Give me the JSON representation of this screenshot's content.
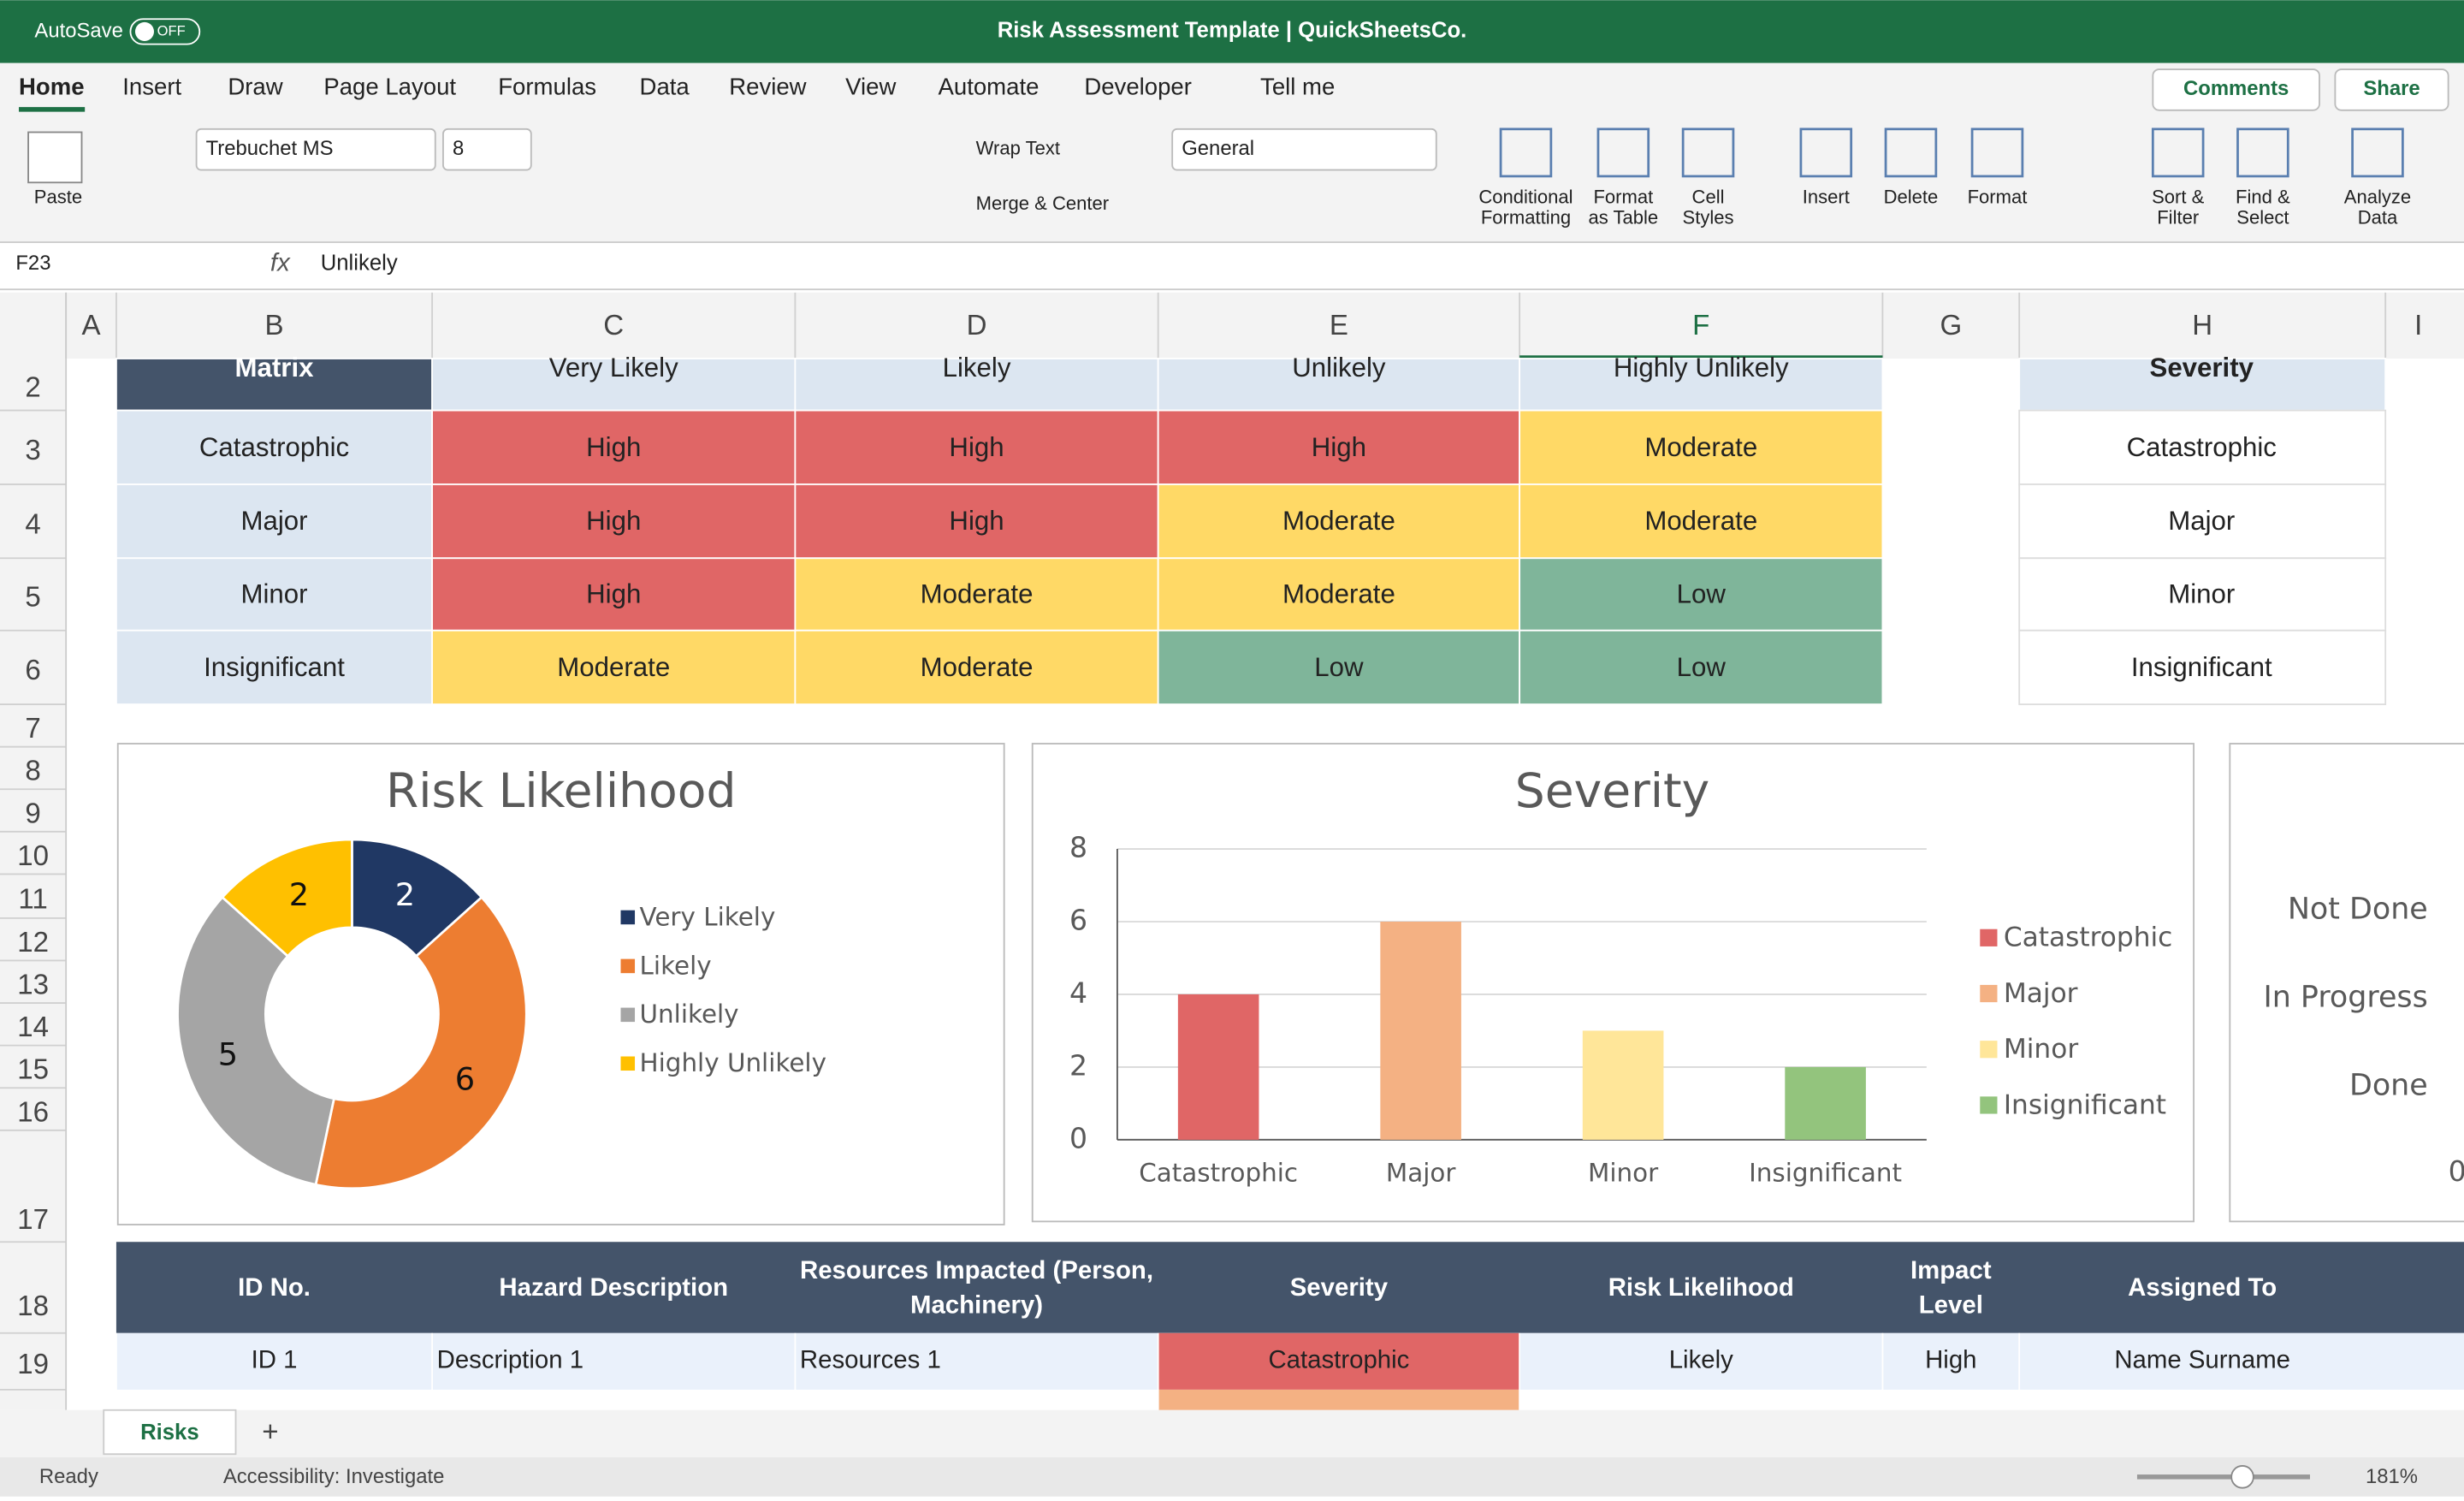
{
  "title_bar": {
    "autosave": "AutoSave",
    "toggle": "OFF",
    "title": "Risk Assessment Template | QuickSheetsCo."
  },
  "tabs": [
    "Home",
    "Insert",
    "Draw",
    "Page Layout",
    "Formulas",
    "Data",
    "Review",
    "View",
    "Automate",
    "Developer",
    "Tell me"
  ],
  "comments": "Comments",
  "share": "Share",
  "ribbon": {
    "paste": "Paste",
    "font": "Trebuchet MS",
    "size": "8",
    "wrap": "Wrap Text",
    "merge": "Merge & Center",
    "number_format": "General",
    "buttons": [
      [
        "Conditional",
        "Formatting"
      ],
      [
        "Format",
        "as Table"
      ],
      [
        "Cell",
        "Styles"
      ],
      [
        "Insert"
      ],
      [
        "Delete"
      ],
      [
        "Format"
      ],
      [
        "Sort &",
        "Filter"
      ],
      [
        "Find &",
        "Select"
      ],
      [
        "Analyze",
        "Data"
      ]
    ]
  },
  "formula_bar": {
    "cell": "F23",
    "fx": "fx",
    "content": "Unlikely"
  },
  "columns": [
    "A",
    "B",
    "C",
    "D",
    "E",
    "F",
    "G",
    "H",
    "I"
  ],
  "rows": [
    2,
    3,
    4,
    5,
    6,
    7,
    8,
    9,
    10,
    11,
    12,
    13,
    14,
    15,
    16,
    17,
    18,
    19
  ],
  "matrix": {
    "header": [
      "Matrix",
      "Very Likely",
      "Likely",
      "Unlikely",
      "Highly Unlikely"
    ],
    "rows": [
      [
        {
          "text": "Catastrophic",
          "color": "#dce6f1"
        },
        {
          "text": "High",
          "color": "#e06666"
        },
        {
          "text": "High",
          "color": "#e06666"
        },
        {
          "text": "High",
          "color": "#e06666"
        },
        {
          "text": "Moderate",
          "color": "#ffd966"
        }
      ],
      [
        {
          "text": "Major",
          "color": "#dce6f1"
        },
        {
          "text": "High",
          "color": "#e06666"
        },
        {
          "text": "High",
          "color": "#e06666"
        },
        {
          "text": "Moderate",
          "color": "#ffd966"
        },
        {
          "text": "Moderate",
          "color": "#ffd966"
        }
      ],
      [
        {
          "text": "Minor",
          "color": "#dce6f1"
        },
        {
          "text": "High",
          "color": "#e06666"
        },
        {
          "text": "Moderate",
          "color": "#ffd966"
        },
        {
          "text": "Moderate",
          "color": "#ffd966"
        },
        {
          "text": "Low",
          "color": "#7fb59a"
        }
      ],
      [
        {
          "text": "Insignificant",
          "color": "#dce6f1"
        },
        {
          "text": "Moderate",
          "color": "#ffd966"
        },
        {
          "text": "Moderate",
          "color": "#ffd966"
        },
        {
          "text": "Low",
          "color": "#7fb59a"
        },
        {
          "text": "Low",
          "color": "#7fb59a"
        }
      ]
    ]
  },
  "severity_list": {
    "header": "Severity",
    "items": [
      "Catastrophic",
      "Major",
      "Minor",
      "Insignificant"
    ]
  },
  "chart_data": [
    {
      "type": "donut",
      "title": "Risk Likelihood",
      "categories": [
        "Very Likely",
        "Likely",
        "Unlikely",
        "Highly Unlikely"
      ],
      "values": [
        2,
        6,
        5,
        2
      ],
      "colors": [
        "#203864",
        "#ed7d31",
        "#a5a5a5",
        "#ffc000"
      ],
      "legend": "right"
    },
    {
      "type": "bar",
      "title": "Severity",
      "categories": [
        "Catastrophic",
        "Major",
        "Minor",
        "Insignificant"
      ],
      "values": [
        4,
        6,
        3,
        2
      ],
      "colors": [
        "#e06666",
        "#f4b183",
        "#ffe699",
        "#93c47d"
      ],
      "ylim": [
        0,
        8
      ],
      "yticks": [
        0,
        2,
        4,
        6,
        8
      ],
      "grid": true,
      "legend": "right"
    }
  ],
  "status_chart": {
    "labels": [
      "Not Done",
      "In Progress",
      "Done"
    ],
    "tick": "0"
  },
  "table": {
    "headers": [
      [
        "ID No."
      ],
      [
        "Hazard Description"
      ],
      [
        "Resources Impacted (Person,",
        "Machinery)"
      ],
      [
        "Severity"
      ],
      [
        "Risk Likelihood"
      ],
      [
        "Impact",
        "Level"
      ],
      [
        "Assigned To"
      ]
    ],
    "row": [
      "ID 1",
      "Description 1",
      "Resources 1",
      "Catastrophic",
      "Likely",
      "High",
      "Name Surname"
    ],
    "severity_color": "#e06666"
  },
  "sheet_tab": "Risks",
  "add_sheet": "+",
  "status_bar": {
    "ready": "Ready",
    "accessibility": "Accessibility: Investigate",
    "zoom": "181%"
  }
}
